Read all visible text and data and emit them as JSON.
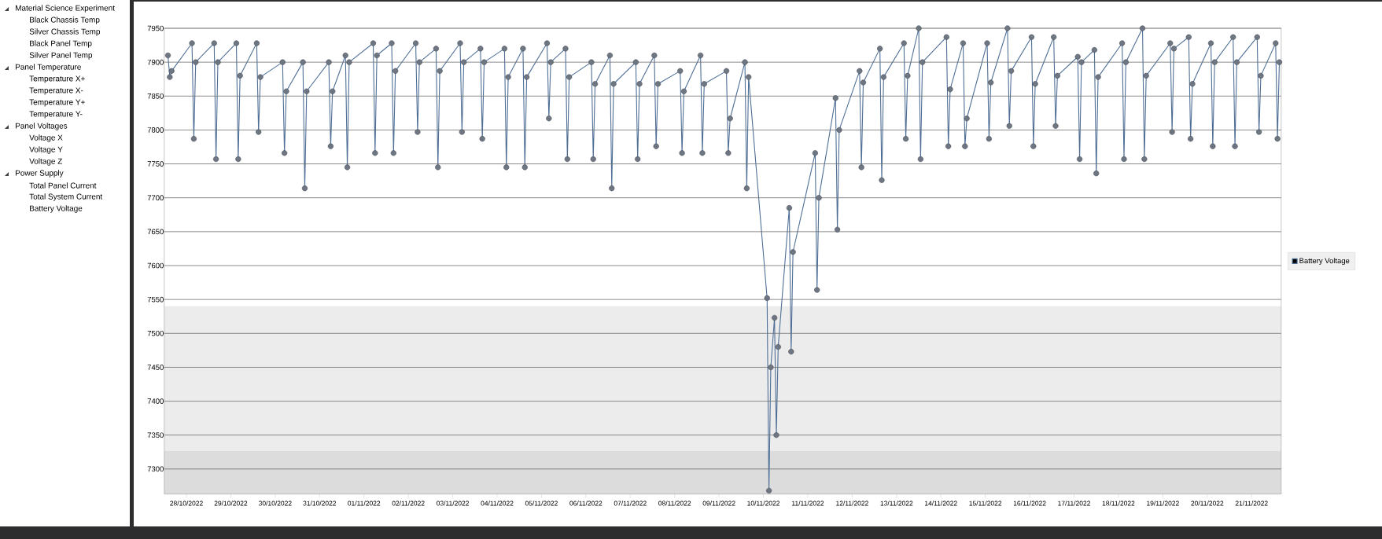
{
  "chart_data": {
    "type": "line",
    "annotations": [
      "Material Science Experiment",
      "Black Chassis Temp",
      "Silver Chassis Temp",
      "Black Panel Temp",
      "Silver Panel Temp",
      "Panel Temperature",
      "Temperature X+",
      "Temperature X-",
      "Temperature Y+",
      "Temperature Y-",
      "Panel Voltages",
      "Voltage X",
      "Voltage Y",
      "Voltage Z",
      "Power Supply",
      "Total Panel Current",
      "Total System Current",
      "Battery Voltage"
    ],
    "x": [
      "2022-10-27T14:00",
      "2022-10-27T15:00",
      "2022-10-27T16:00",
      "2022-10-28T03:00",
      "2022-10-28T04:00",
      "2022-10-28T05:00",
      "2022-10-28T15:00",
      "2022-10-28T16:00",
      "2022-10-28T17:00",
      "2022-10-29T03:00",
      "2022-10-29T04:00",
      "2022-10-29T05:00",
      "2022-10-29T14:00",
      "2022-10-29T15:00",
      "2022-10-29T16:00",
      "2022-10-30T04:00",
      "2022-10-30T05:00",
      "2022-10-30T06:00",
      "2022-10-30T15:00",
      "2022-10-30T16:00",
      "2022-10-30T17:00",
      "2022-10-31T05:00",
      "2022-10-31T06:00",
      "2022-10-31T07:00",
      "2022-10-31T14:00",
      "2022-10-31T15:00",
      "2022-10-31T16:00",
      "2022-11-01T05:00",
      "2022-11-01T06:00",
      "2022-11-01T07:00",
      "2022-11-01T15:00",
      "2022-11-01T16:00",
      "2022-11-01T17:00",
      "2022-11-02T04:00",
      "2022-11-02T05:00",
      "2022-11-02T06:00",
      "2022-11-02T15:00",
      "2022-11-02T16:00",
      "2022-11-02T17:00",
      "2022-11-03T04:00",
      "2022-11-03T05:00",
      "2022-11-03T06:00",
      "2022-11-03T15:00",
      "2022-11-03T16:00",
      "2022-11-03T17:00",
      "2022-11-04T04:00",
      "2022-11-04T05:00",
      "2022-11-04T06:00",
      "2022-11-04T14:00",
      "2022-11-04T15:00",
      "2022-11-04T16:00",
      "2022-11-05T03:00",
      "2022-11-05T04:00",
      "2022-11-05T05:00",
      "2022-11-05T13:00",
      "2022-11-05T14:00",
      "2022-11-05T15:00",
      "2022-11-06T03:00",
      "2022-11-06T04:00",
      "2022-11-06T05:00",
      "2022-11-06T13:00",
      "2022-11-06T14:00",
      "2022-11-06T15:00",
      "2022-11-07T03:00",
      "2022-11-07T04:00",
      "2022-11-07T05:00",
      "2022-11-07T13:00",
      "2022-11-07T14:00",
      "2022-11-07T15:00",
      "2022-11-08T03:00",
      "2022-11-08T04:00",
      "2022-11-08T05:00",
      "2022-11-08T14:00",
      "2022-11-08T15:00",
      "2022-11-08T16:00",
      "2022-11-09T04:00",
      "2022-11-09T05:00",
      "2022-11-09T06:00",
      "2022-11-09T14:00",
      "2022-11-09T15:00",
      "2022-11-09T16:00",
      "2022-11-10T02:00",
      "2022-11-10T03:00",
      "2022-11-10T04:00",
      "2022-11-10T06:00",
      "2022-11-10T07:00",
      "2022-11-10T08:00",
      "2022-11-10T14:00",
      "2022-11-10T15:00",
      "2022-11-10T16:00",
      "2022-11-11T04:00",
      "2022-11-11T05:00",
      "2022-11-11T06:00",
      "2022-11-11T15:00",
      "2022-11-11T16:00",
      "2022-11-11T17:00",
      "2022-11-12T04:00",
      "2022-11-12T05:00",
      "2022-11-12T06:00",
      "2022-11-12T15:00",
      "2022-11-12T16:00",
      "2022-11-12T17:00",
      "2022-11-13T04:00",
      "2022-11-13T05:00",
      "2022-11-13T06:00",
      "2022-11-13T12:00",
      "2022-11-13T13:00",
      "2022-11-13T14:00",
      "2022-11-14T03:00",
      "2022-11-14T04:00",
      "2022-11-14T05:00",
      "2022-11-14T12:00",
      "2022-11-14T13:00",
      "2022-11-14T14:00",
      "2022-11-15T01:00",
      "2022-11-15T02:00",
      "2022-11-15T03:00",
      "2022-11-15T12:00",
      "2022-11-15T13:00",
      "2022-11-15T14:00",
      "2022-11-16T01:00",
      "2022-11-16T02:00",
      "2022-11-16T03:00",
      "2022-11-16T13:00",
      "2022-11-16T14:00",
      "2022-11-16T15:00",
      "2022-11-17T02:00",
      "2022-11-17T03:00",
      "2022-11-17T04:00",
      "2022-11-17T11:00",
      "2022-11-17T12:00",
      "2022-11-17T13:00",
      "2022-11-18T02:00",
      "2022-11-18T03:00",
      "2022-11-18T04:00",
      "2022-11-18T13:00",
      "2022-11-18T14:00",
      "2022-11-18T15:00",
      "2022-11-19T04:00",
      "2022-11-19T05:00",
      "2022-11-19T06:00",
      "2022-11-19T14:00",
      "2022-11-19T15:00",
      "2022-11-19T16:00",
      "2022-11-20T02:00",
      "2022-11-20T03:00",
      "2022-11-20T04:00",
      "2022-11-20T14:00",
      "2022-11-20T15:00",
      "2022-11-20T16:00",
      "2022-11-21T03:00",
      "2022-11-21T04:00",
      "2022-11-21T05:00",
      "2022-11-21T13:00",
      "2022-11-21T14:00",
      "2022-11-21T15:00"
    ],
    "series": [
      {
        "name": "Battery Voltage",
        "color": "#4f6f96",
        "values": [
          7910,
          7878,
          7887,
          7928,
          7787,
          7900,
          7928,
          7757,
          7900,
          7928,
          7757,
          7880,
          7928,
          7797,
          7878,
          7900,
          7766,
          7857,
          7900,
          7714,
          7857,
          7900,
          7776,
          7857,
          7910,
          7745,
          7900,
          7928,
          7766,
          7910,
          7928,
          7766,
          7887,
          7928,
          7797,
          7900,
          7920,
          7745,
          7887,
          7928,
          7797,
          7900,
          7920,
          7787,
          7900,
          7920,
          7745,
          7878,
          7920,
          7745,
          7878,
          7928,
          7817,
          7900,
          7920,
          7757,
          7878,
          7900,
          7757,
          7868,
          7910,
          7714,
          7868,
          7900,
          7757,
          7868,
          7910,
          7776,
          7868,
          7887,
          7766,
          7857,
          7910,
          7766,
          7868,
          7887,
          7766,
          7817,
          7900,
          7714,
          7878,
          7552,
          7268,
          7450,
          7523,
          7350,
          7480,
          7685,
          7473,
          7620,
          7766,
          7564,
          7700,
          7847,
          7653,
          7800,
          7887,
          7745,
          7870,
          7920,
          7726,
          7878,
          7928,
          7787,
          7880,
          7950,
          7757,
          7900,
          7937,
          7776,
          7860,
          7928,
          7776,
          7817,
          7928,
          7787,
          7870,
          7950,
          7806,
          7887,
          7937,
          7776,
          7868,
          7937,
          7806,
          7880,
          7908,
          7757,
          7900,
          7918,
          7736,
          7878,
          7928,
          7757,
          7900,
          7950,
          7757,
          7880,
          7928,
          7797,
          7920,
          7937,
          7787,
          7868,
          7928,
          7776,
          7900,
          7937,
          7776,
          7900,
          7937,
          7797,
          7880,
          7928,
          7787,
          7900
        ]
      }
    ],
    "xlim": [
      "2022-10-27T12:00",
      "2022-11-21T16:00"
    ],
    "xticks": [
      {
        "value": "2022-10-28",
        "label": "28/10/2022"
      },
      {
        "value": "2022-10-29",
        "label": "29/10/2022"
      },
      {
        "value": "2022-10-30",
        "label": "30/10/2022"
      },
      {
        "value": "2022-10-31",
        "label": "31/10/2022"
      },
      {
        "value": "2022-11-01",
        "label": "01/11/2022"
      },
      {
        "value": "2022-11-02",
        "label": "02/11/2022"
      },
      {
        "value": "2022-11-03",
        "label": "03/11/2022"
      },
      {
        "value": "2022-11-04",
        "label": "04/11/2022"
      },
      {
        "value": "2022-11-05",
        "label": "05/11/2022"
      },
      {
        "value": "2022-11-06",
        "label": "06/11/2022"
      },
      {
        "value": "2022-11-07",
        "label": "07/11/2022"
      },
      {
        "value": "2022-11-08",
        "label": "08/11/2022"
      },
      {
        "value": "2022-11-09",
        "label": "09/11/2022"
      },
      {
        "value": "2022-11-10",
        "label": "10/11/2022"
      },
      {
        "value": "2022-11-11",
        "label": "11/11/2022"
      },
      {
        "value": "2022-11-12",
        "label": "12/11/2022"
      },
      {
        "value": "2022-11-13",
        "label": "13/11/2022"
      },
      {
        "value": "2022-11-14",
        "label": "14/11/2022"
      },
      {
        "value": "2022-11-15",
        "label": "15/11/2022"
      },
      {
        "value": "2022-11-16",
        "label": "16/11/2022"
      },
      {
        "value": "2022-11-17",
        "label": "17/11/2022"
      },
      {
        "value": "2022-11-18",
        "label": "18/11/2022"
      },
      {
        "value": "2022-11-19",
        "label": "19/11/2022"
      },
      {
        "value": "2022-11-20",
        "label": "20/11/2022"
      },
      {
        "value": "2022-11-21",
        "label": "21/11/2022"
      }
    ],
    "ylim": [
      7263,
      7950
    ],
    "yticks": [
      7300,
      7350,
      7400,
      7450,
      7500,
      7550,
      7600,
      7650,
      7700,
      7750,
      7800,
      7850,
      7900,
      7950
    ],
    "bands": [
      {
        "axis": "y",
        "from": 7263,
        "to": 7327,
        "color": "#dcdcdc"
      },
      {
        "axis": "y",
        "from": 7327,
        "to": 7540,
        "color": "#ececec"
      }
    ],
    "grid": "y",
    "legend": "right",
    "marker": "circle",
    "line_style": "solid"
  }
}
